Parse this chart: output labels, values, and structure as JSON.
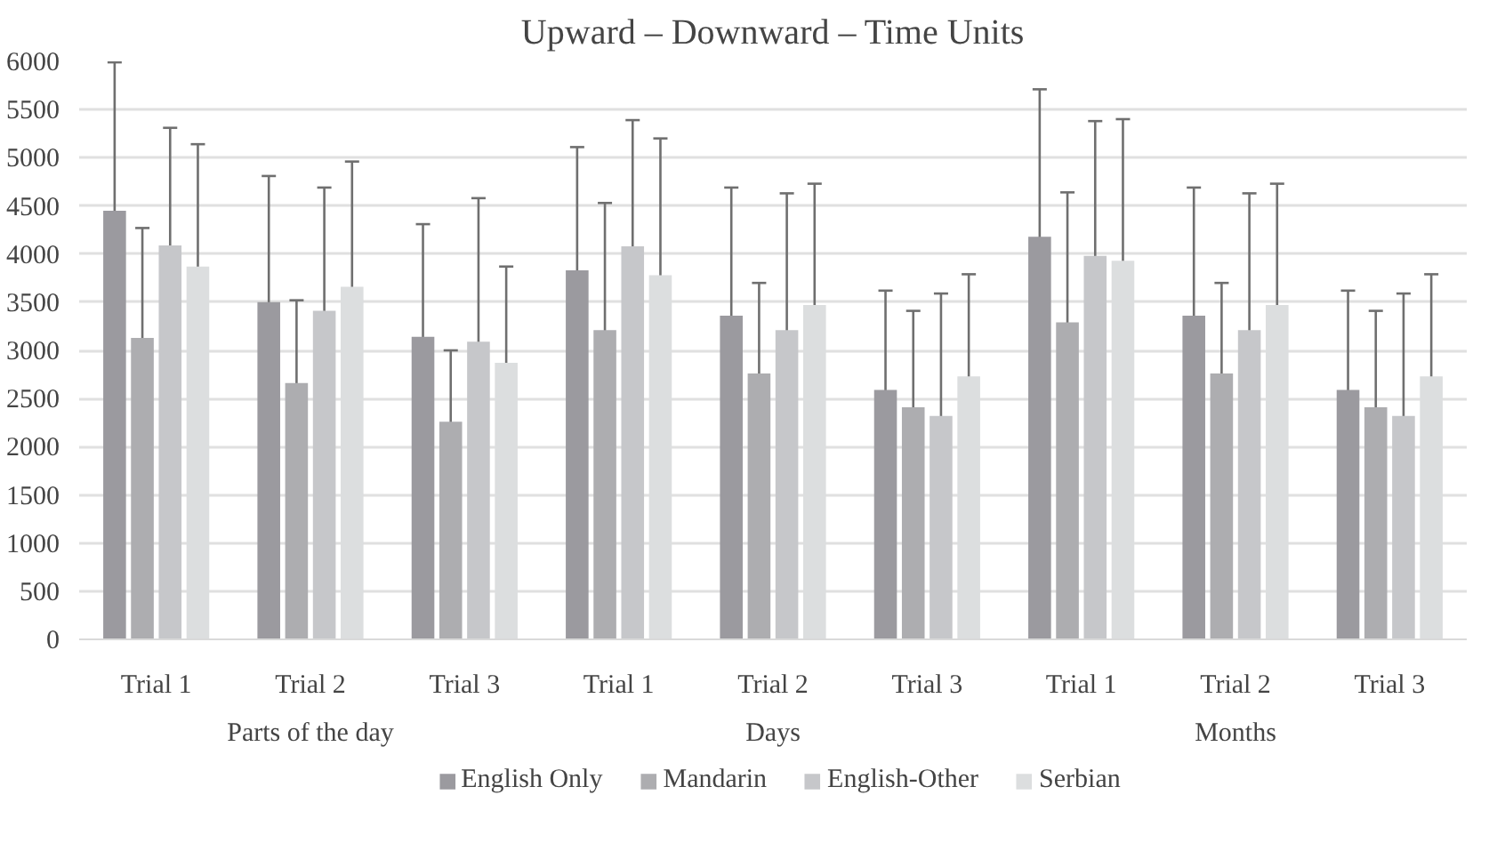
{
  "chart_data": {
    "type": "bar",
    "title": "Upward – Downward – Time Units",
    "categories": [
      "Trial 1",
      "Trial 2",
      "Trial 3",
      "Trial 1",
      "Trial 2",
      "Trial 3",
      "Trial 1",
      "Trial 2",
      "Trial 3"
    ],
    "annotations": [
      "Parts of the day",
      "Days",
      "Months"
    ],
    "series": [
      {
        "name": "English Only",
        "color": "#9b9a9f",
        "values": [
          4450,
          3500,
          3140,
          3830,
          3360,
          2590,
          4180,
          3360,
          2590
        ],
        "errors": [
          1540,
          1310,
          1170,
          1280,
          1330,
          1030,
          1530,
          1330,
          1030
        ]
      },
      {
        "name": "Mandarin",
        "color": "#adadb0",
        "values": [
          3130,
          2660,
          2260,
          3210,
          2760,
          2410,
          3290,
          2760,
          2410
        ],
        "errors": [
          1140,
          860,
          740,
          1320,
          940,
          1000,
          1350,
          940,
          1000
        ]
      },
      {
        "name": "English-Other",
        "color": "#c6c7ca",
        "values": [
          4090,
          3410,
          3090,
          4080,
          3210,
          2320,
          3980,
          3210,
          2320
        ],
        "errors": [
          1220,
          1280,
          1490,
          1310,
          1420,
          1270,
          1400,
          1420,
          1270
        ]
      },
      {
        "name": "Serbian",
        "color": "#dcdedf",
        "values": [
          3870,
          3660,
          2870,
          3780,
          3470,
          2730,
          3930,
          3470,
          2730
        ],
        "errors": [
          1270,
          1300,
          1000,
          1420,
          1260,
          1060,
          1470,
          1260,
          1060
        ]
      }
    ],
    "ylim": [
      0,
      6000
    ],
    "yticks": [
      0,
      500,
      1000,
      1500,
      2000,
      2500,
      3000,
      3500,
      4000,
      4500,
      5000,
      5500,
      6000
    ],
    "grid": "y",
    "legend": "bottom"
  }
}
